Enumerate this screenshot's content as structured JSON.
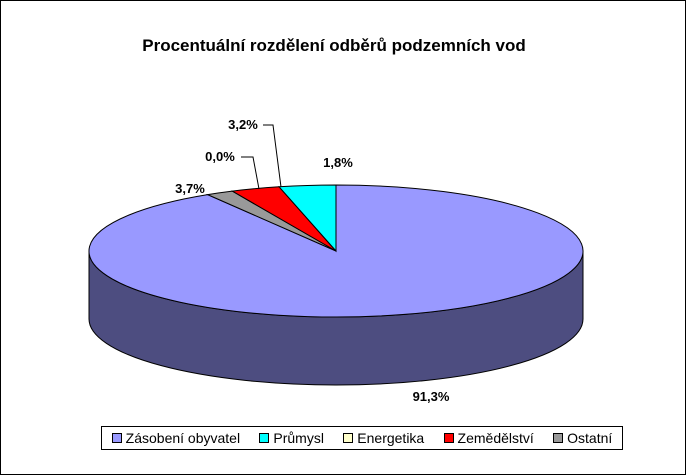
{
  "chart_data": {
    "type": "pie",
    "title": "Procentuální rozdělení odběrů podzemních vod",
    "categories": [
      "Zásobení obyvatel",
      "Průmysl",
      "Energetika",
      "Zemědělství",
      "Ostatní"
    ],
    "values": [
      91.3,
      3.7,
      0.0,
      3.2,
      1.8
    ],
    "data_labels": [
      "91,3%",
      "3,7%",
      "0,0%",
      "3,2%",
      "1,8%"
    ],
    "colors": [
      "#9999ff",
      "#00ffff",
      "#ffffcc",
      "#ff0000",
      "#999999"
    ],
    "legend_position": "bottom",
    "style": "3d"
  }
}
